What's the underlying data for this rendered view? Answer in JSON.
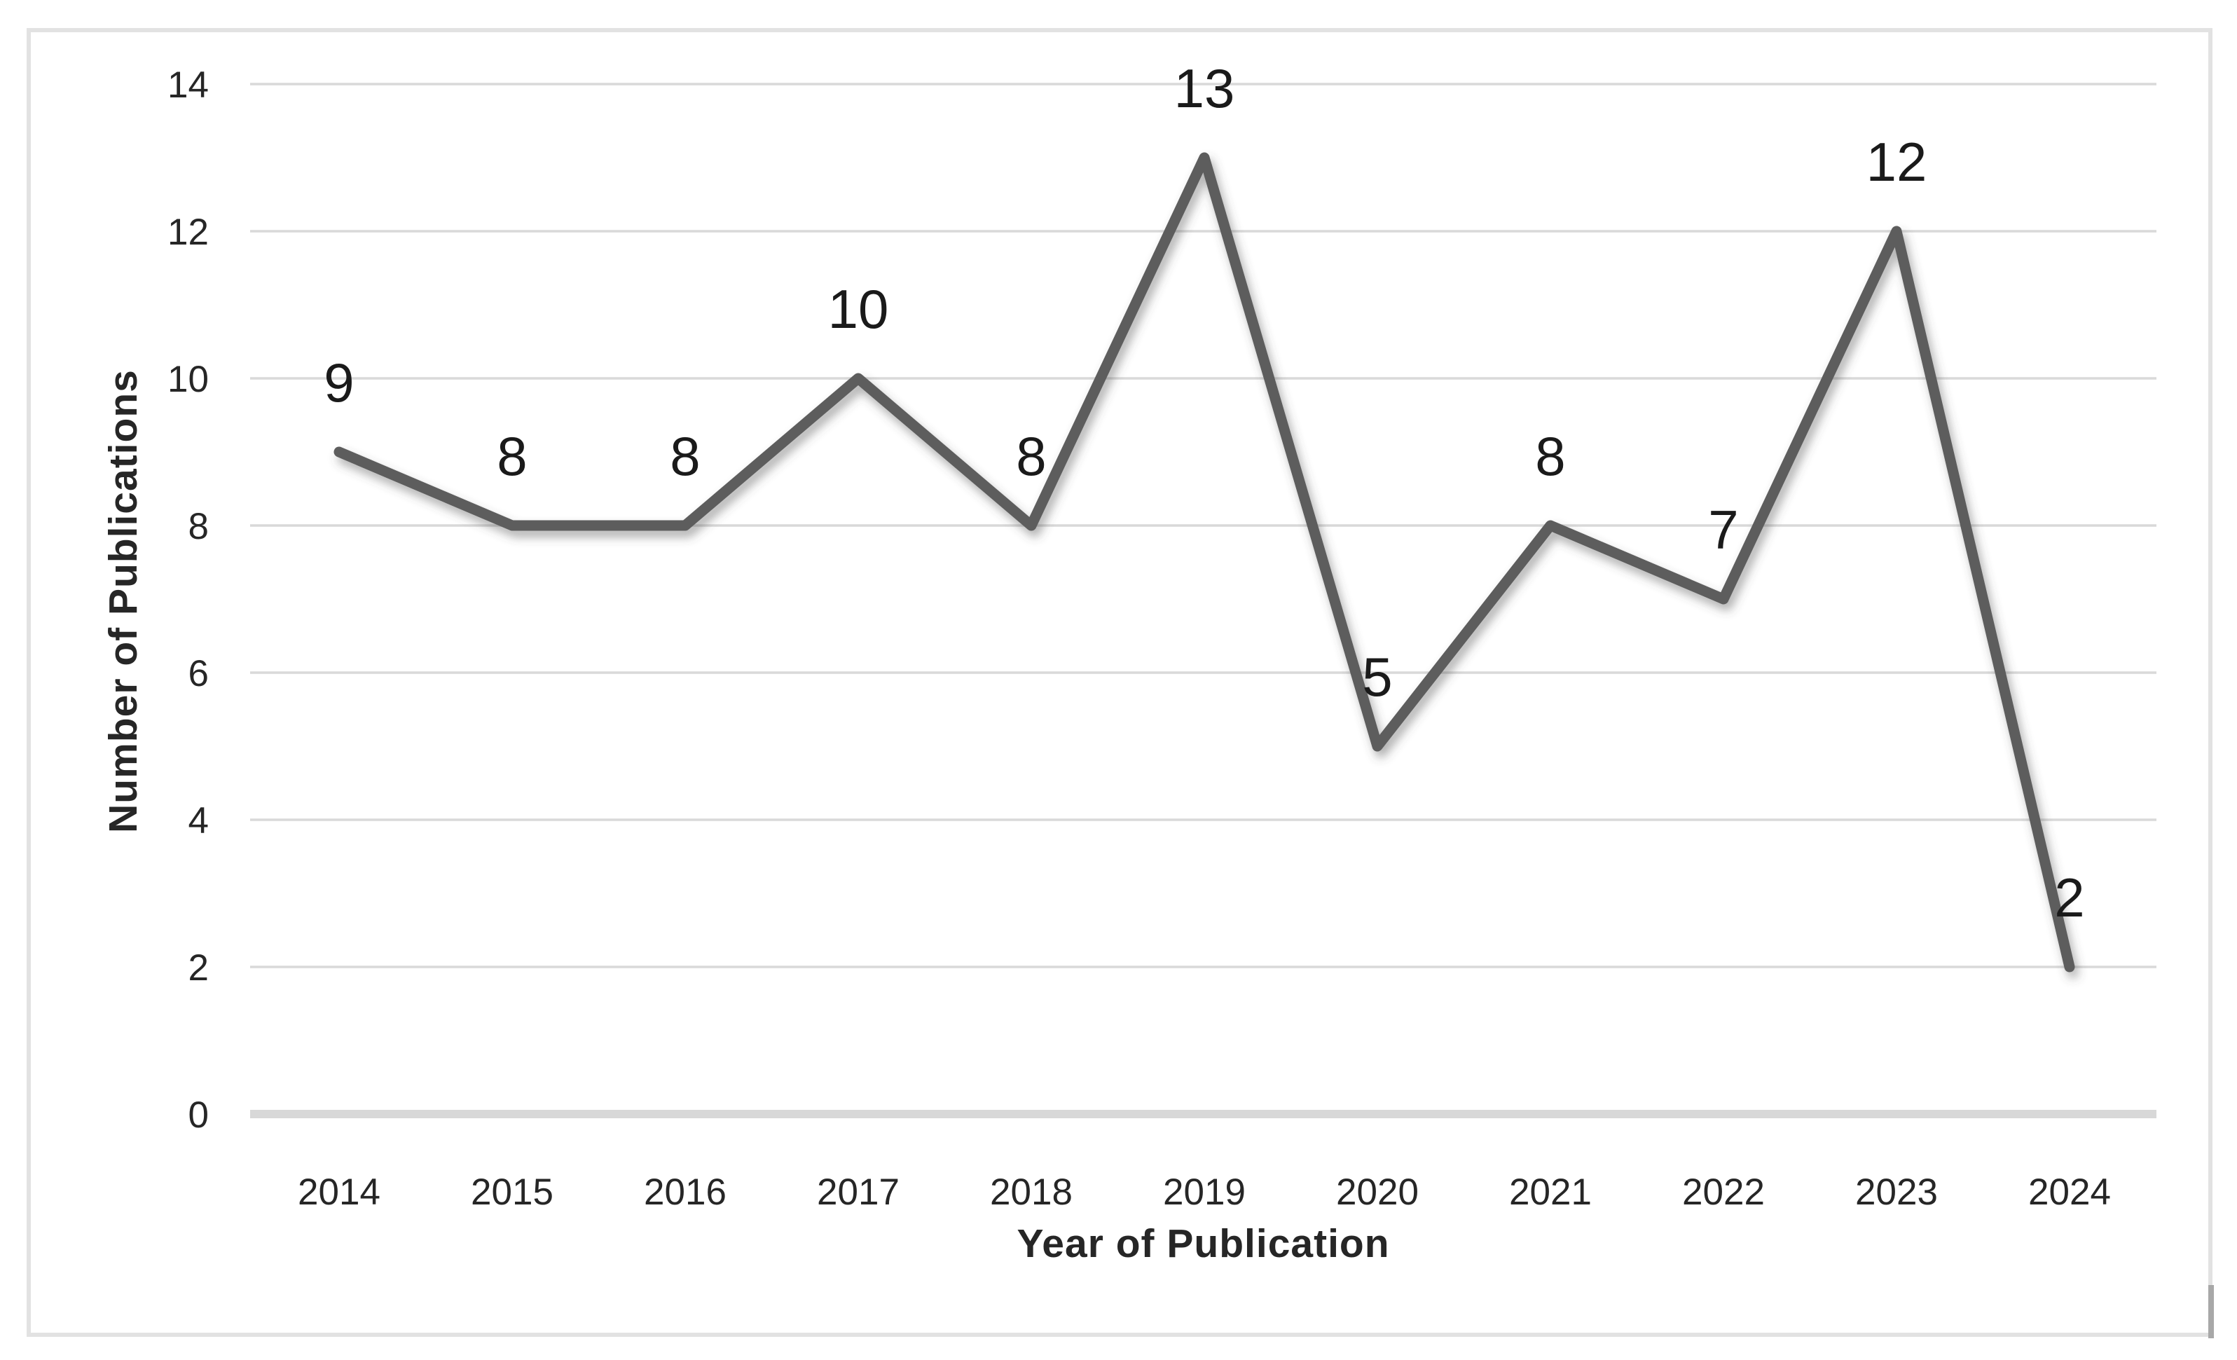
{
  "chart_data": {
    "type": "line",
    "categories": [
      "2014",
      "2015",
      "2016",
      "2017",
      "2018",
      "2019",
      "2020",
      "2021",
      "2022",
      "2023",
      "2024"
    ],
    "values": [
      9,
      8,
      8,
      10,
      8,
      13,
      5,
      8,
      7,
      12,
      2
    ],
    "data_labels": [
      "9",
      "8",
      "8",
      "10",
      "8",
      "13",
      "5",
      "8",
      "7",
      "12",
      "2"
    ],
    "title": "",
    "xlabel": "Year of Publication",
    "ylabel": "Number of Publications",
    "ylim": [
      0,
      14
    ],
    "yticks": [
      0,
      2,
      4,
      6,
      8,
      10,
      12,
      14
    ],
    "grid": "horizontal",
    "legend": "none",
    "data_label_position": "above",
    "marker": "none"
  },
  "colors": {
    "series_line": "#5d5d5d",
    "gridline": "#d9d9d9",
    "axis_line": "#d8d8d8",
    "tick_label": "#262626",
    "data_label": "#1a1a1a",
    "frame_border": "#e2e2e2",
    "scroll_fragment": "#a8a8a8",
    "background": "#ffffff"
  }
}
